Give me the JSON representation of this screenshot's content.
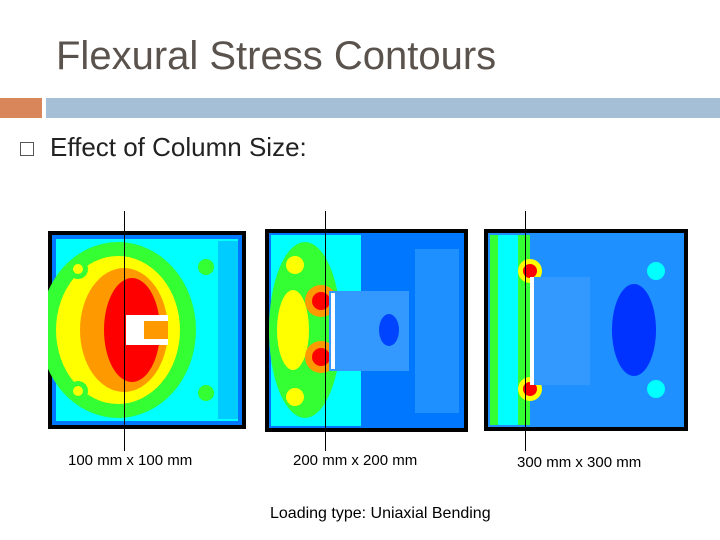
{
  "slide": {
    "title": "Flexural Stress Contours",
    "bullet": "Effect of Column Size:",
    "loading": "Loading type: Uniaxial Bending"
  },
  "panels": [
    {
      "caption": "100 mm x 100 mm"
    },
    {
      "caption": "200 mm x 200 mm"
    },
    {
      "caption": "300 mm x 300 mm"
    }
  ],
  "colors": {
    "title": "#5a524c",
    "accent_orange": "#d8865a",
    "accent_blue": "#a5bfd6",
    "contour_red": "#ff0000",
    "contour_orange": "#ff9900",
    "contour_yellow": "#ffff00",
    "contour_green": "#33ff33",
    "contour_cyan": "#00ffff",
    "contour_lightblue": "#1e90ff",
    "contour_blue": "#0033ff"
  }
}
